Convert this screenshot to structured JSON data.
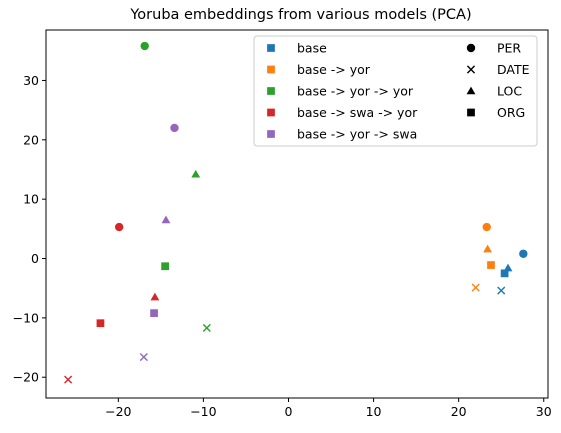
{
  "chart_data": {
    "type": "scatter",
    "title": "Yoruba embeddings from various models (PCA)",
    "xlabel": "",
    "ylabel": "",
    "xlim": [
      -28.5,
      30.5
    ],
    "ylim": [
      -23.5,
      38.5
    ],
    "xticks": [
      -20,
      -10,
      0,
      10,
      20,
      30
    ],
    "yticks": [
      -20,
      -10,
      0,
      10,
      20,
      30
    ],
    "grid": false,
    "legend_placement": "top-right",
    "series": [
      {
        "name": "base",
        "color": "#1f77b4",
        "points": [
          {
            "category": "PER",
            "x": 27.6,
            "y": 0.8
          },
          {
            "category": "DATE",
            "x": 25.0,
            "y": -5.4
          },
          {
            "category": "LOC",
            "x": 25.8,
            "y": -1.6
          },
          {
            "category": "ORG",
            "x": 25.4,
            "y": -2.5
          }
        ]
      },
      {
        "name": "base -> yor",
        "color": "#ff7f0e",
        "points": [
          {
            "category": "PER",
            "x": 23.3,
            "y": 5.3
          },
          {
            "category": "DATE",
            "x": 22.0,
            "y": -4.9
          },
          {
            "category": "LOC",
            "x": 23.4,
            "y": 1.6
          },
          {
            "category": "ORG",
            "x": 23.8,
            "y": -1.1
          }
        ]
      },
      {
        "name": "base -> yor -> yor",
        "color": "#2ca02c",
        "points": [
          {
            "category": "PER",
            "x": -16.9,
            "y": 35.8
          },
          {
            "category": "DATE",
            "x": -9.6,
            "y": -11.7
          },
          {
            "category": "LOC",
            "x": -10.9,
            "y": 14.2
          },
          {
            "category": "ORG",
            "x": -14.5,
            "y": -1.3
          }
        ]
      },
      {
        "name": "base -> swa -> yor",
        "color": "#d62728",
        "points": [
          {
            "category": "PER",
            "x": -19.9,
            "y": 5.3
          },
          {
            "category": "DATE",
            "x": -25.9,
            "y": -20.4
          },
          {
            "category": "LOC",
            "x": -15.7,
            "y": -6.5
          },
          {
            "category": "ORG",
            "x": -22.1,
            "y": -10.9
          }
        ]
      },
      {
        "name": "base -> yor -> swa",
        "color": "#9467bd",
        "points": [
          {
            "category": "PER",
            "x": -13.4,
            "y": 22.0
          },
          {
            "category": "DATE",
            "x": -17.0,
            "y": -16.6
          },
          {
            "category": "LOC",
            "x": -14.4,
            "y": 6.5
          },
          {
            "category": "ORG",
            "x": -15.8,
            "y": -9.2
          }
        ]
      }
    ],
    "marker_legend": [
      {
        "name": "PER",
        "marker": "circle"
      },
      {
        "name": "DATE",
        "marker": "x"
      },
      {
        "name": "LOC",
        "marker": "triangle"
      },
      {
        "name": "ORG",
        "marker": "square"
      }
    ]
  }
}
